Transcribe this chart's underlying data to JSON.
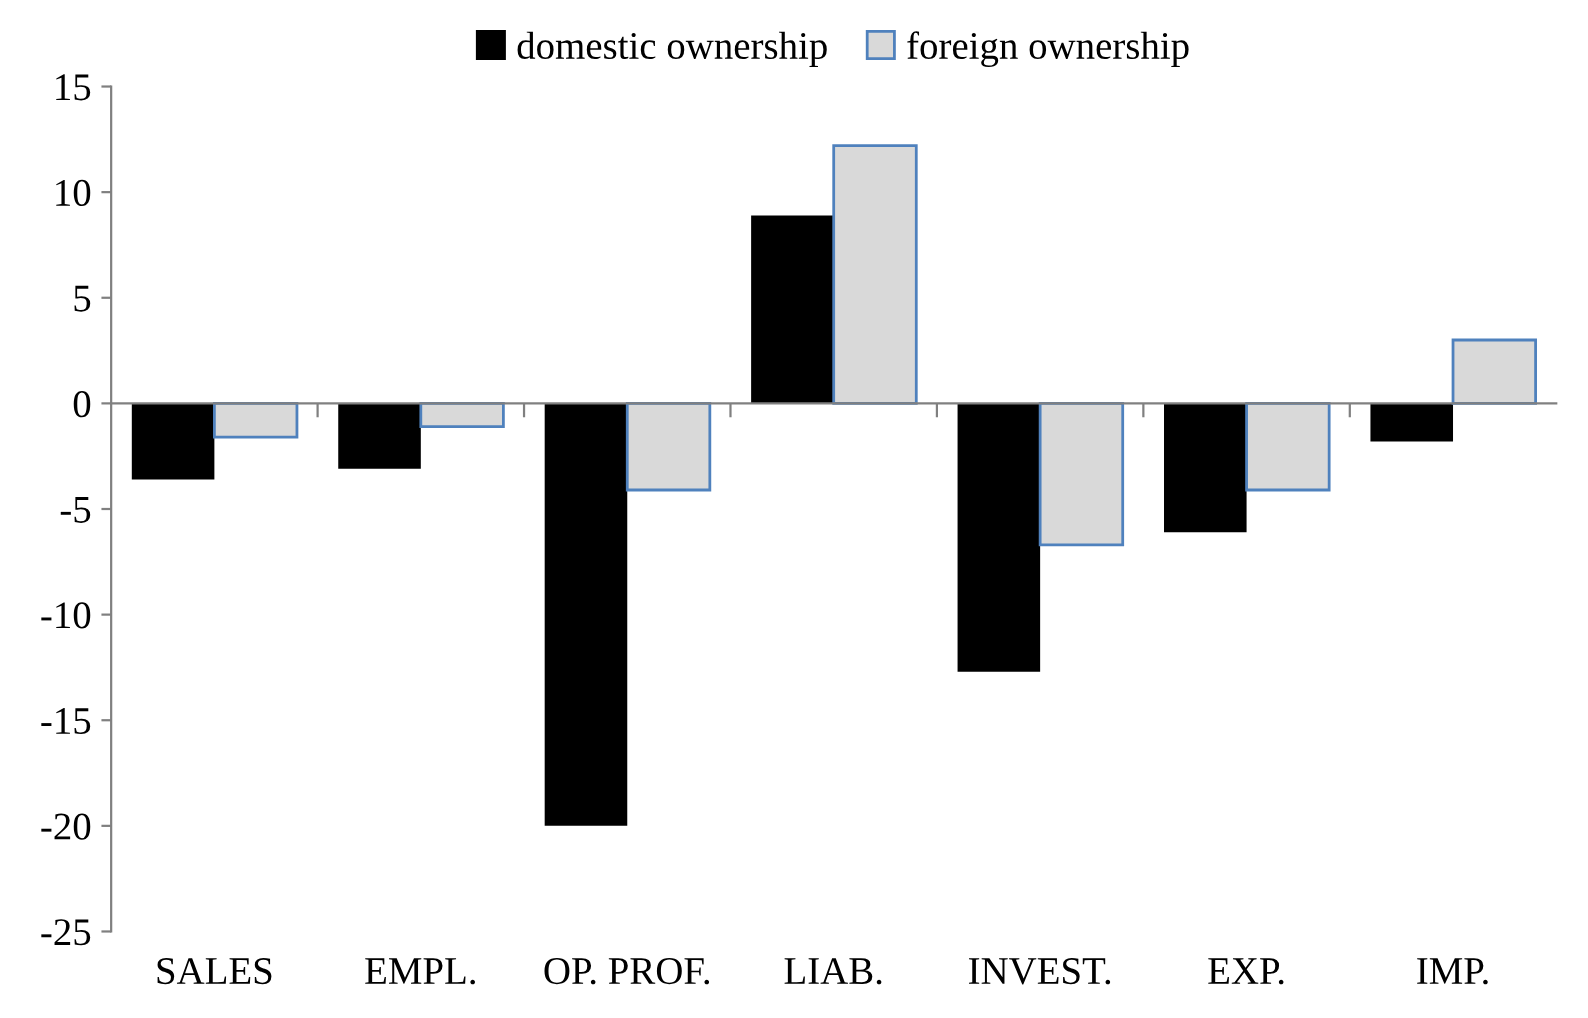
{
  "chart_data": {
    "type": "bar",
    "categories": [
      "SALES",
      "EMPL.",
      "OP. PROF.",
      "LIAB.",
      "INVEST.",
      "EXP.",
      "IMP."
    ],
    "series": [
      {
        "name": "domestic ownership",
        "color": "#000000",
        "values": [
          -3.6,
          -3.1,
          -20.0,
          8.9,
          -12.7,
          -6.1,
          -1.8
        ]
      },
      {
        "name": "foreign ownership",
        "color": "#d9d9d9",
        "values": [
          -1.6,
          -1.1,
          -4.1,
          12.2,
          -6.7,
          -4.1,
          3.0
        ]
      }
    ],
    "ylim": [
      -25,
      15
    ],
    "yticks": [
      -25,
      -20,
      -15,
      -10,
      -5,
      0,
      5,
      10,
      15
    ],
    "legend": "top"
  }
}
